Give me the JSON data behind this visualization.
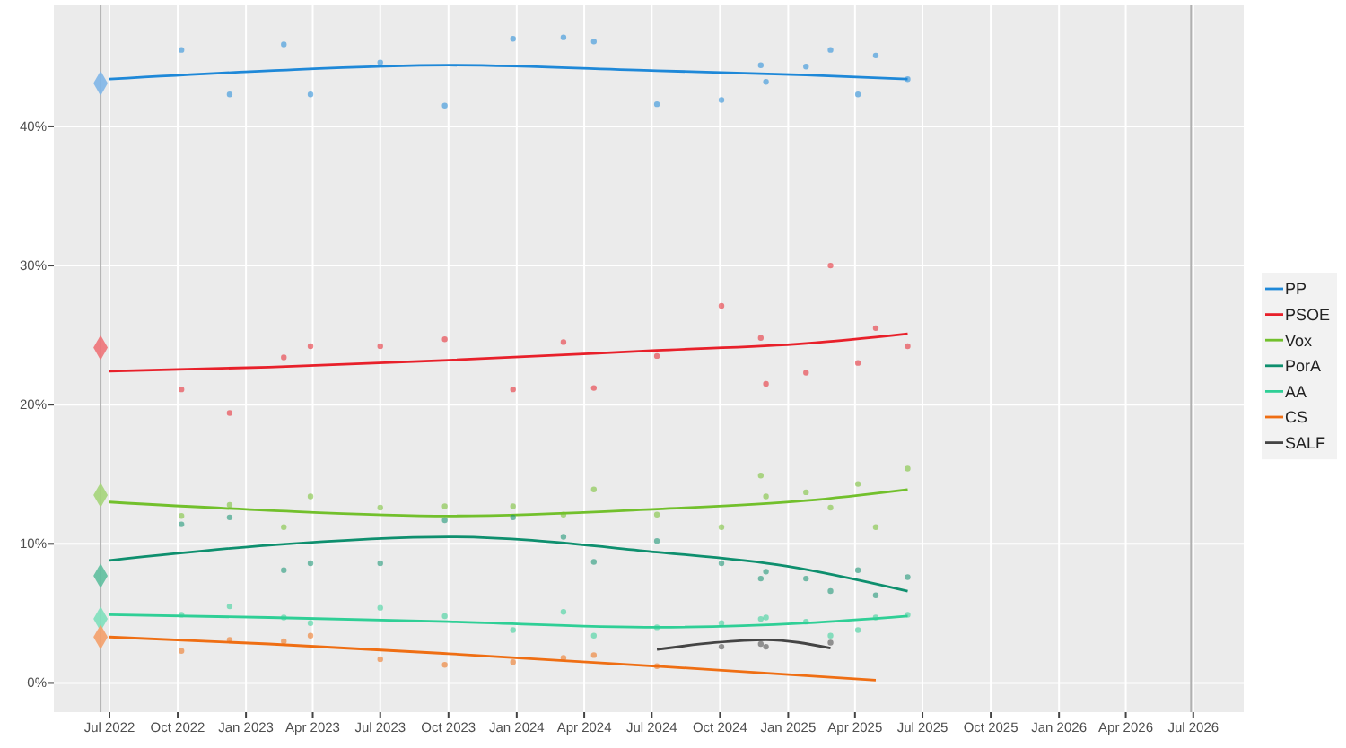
{
  "chart_data": {
    "type": "line",
    "xlim": [
      "2022-04-17",
      "2026-09-07"
    ],
    "ylim": [
      -2.1,
      48.7
    ],
    "xticks": [
      {
        "value": "2022-07-01",
        "label": "Jul 2022"
      },
      {
        "value": "2022-10-01",
        "label": "Oct 2022"
      },
      {
        "value": "2023-01-01",
        "label": "Jan 2023"
      },
      {
        "value": "2023-04-01",
        "label": "Apr 2023"
      },
      {
        "value": "2023-07-01",
        "label": "Jul 2023"
      },
      {
        "value": "2023-10-01",
        "label": "Oct 2023"
      },
      {
        "value": "2024-01-01",
        "label": "Jan 2024"
      },
      {
        "value": "2024-04-01",
        "label": "Apr 2024"
      },
      {
        "value": "2024-07-01",
        "label": "Jul 2024"
      },
      {
        "value": "2024-10-01",
        "label": "Oct 2024"
      },
      {
        "value": "2025-01-01",
        "label": "Jan 2025"
      },
      {
        "value": "2025-04-01",
        "label": "Apr 2025"
      },
      {
        "value": "2025-07-01",
        "label": "Jul 2025"
      },
      {
        "value": "2025-10-01",
        "label": "Oct 2025"
      },
      {
        "value": "2026-01-01",
        "label": "Jan 2026"
      },
      {
        "value": "2026-04-01",
        "label": "Apr 2026"
      },
      {
        "value": "2026-07-01",
        "label": "Jul 2026"
      }
    ],
    "yticks": [
      {
        "value": 0,
        "label": "0%"
      },
      {
        "value": 10,
        "label": "10%"
      },
      {
        "value": 20,
        "label": "20%"
      },
      {
        "value": 30,
        "label": "30%"
      },
      {
        "value": 40,
        "label": "40%"
      }
    ],
    "grid": true,
    "legend": "right",
    "line_style": "solid",
    "ref_lines": [
      {
        "axis": "x",
        "value": "2022-06-19",
        "color": "#b0b0b0"
      },
      {
        "axis": "x",
        "value": "2026-06-28",
        "color": "#b0b0b0"
      }
    ],
    "series": [
      {
        "name": "PP",
        "color": "#1e88d8",
        "x": [
          "2022-07-01",
          "2023-02-01",
          "2023-10-01",
          "2024-07-08",
          "2025-01-25",
          "2025-06-11"
        ],
        "values": [
          43.4,
          44.0,
          44.4,
          44.0,
          43.7,
          43.4
        ]
      },
      {
        "name": "PSOE",
        "color": "#e8202a",
        "x": [
          "2022-07-01",
          "2023-02-01",
          "2023-10-01",
          "2024-07-08",
          "2025-01-25",
          "2025-06-11"
        ],
        "values": [
          22.4,
          22.7,
          23.2,
          23.9,
          24.4,
          25.1
        ]
      },
      {
        "name": "Vox",
        "color": "#72c02c",
        "x": [
          "2022-07-01",
          "2023-02-01",
          "2023-10-01",
          "2024-07-08",
          "2025-01-25",
          "2025-06-11"
        ],
        "values": [
          13.0,
          12.4,
          12.0,
          12.5,
          13.1,
          13.9
        ]
      },
      {
        "name": "PorA",
        "color": "#0e8f6e",
        "x": [
          "2022-07-01",
          "2023-02-01",
          "2023-10-01",
          "2024-07-08",
          "2024-12-29",
          "2025-06-11"
        ],
        "values": [
          8.8,
          9.9,
          10.5,
          9.4,
          8.4,
          6.6
        ]
      },
      {
        "name": "AA",
        "color": "#2fcf96",
        "x": [
          "2022-07-01",
          "2023-02-01",
          "2023-10-01",
          "2024-07-08",
          "2025-01-25",
          "2025-06-11"
        ],
        "values": [
          4.9,
          4.7,
          4.4,
          4.0,
          4.3,
          4.8
        ]
      },
      {
        "name": "CS",
        "color": "#ef6e13",
        "x": [
          "2022-07-01",
          "2023-02-01",
          "2023-10-01",
          "2024-07-08",
          "2025-04-29"
        ],
        "values": [
          3.3,
          2.8,
          2.1,
          1.2,
          0.2
        ]
      },
      {
        "name": "SALF",
        "color": "#444444",
        "x": [
          "2024-07-08",
          "2024-09-24",
          "2024-12-02",
          "2025-02-27"
        ],
        "values": [
          2.4,
          2.9,
          3.1,
          2.5
        ]
      },
      {
        "type": "scatter",
        "marker": "diamond",
        "x": [
          "2022-06-19",
          "2022-06-19",
          "2022-06-19",
          "2022-06-19",
          "2022-06-19",
          "2022-06-19"
        ],
        "values": [
          43.1,
          24.1,
          13.5,
          7.7,
          4.6,
          3.3
        ],
        "colors": [
          "#7fb6e8",
          "#ee7378",
          "#a5d57a",
          "#5fbf9f",
          "#7ee0bd",
          "#f4a06a"
        ]
      },
      {
        "type": "scatter",
        "marker": "circle",
        "color": "#1e88d8",
        "x": [
          "2022-10-06",
          "2022-12-10",
          "2023-02-21",
          "2023-03-29",
          "2023-07-01",
          "2023-09-26",
          "2023-12-27",
          "2024-03-04",
          "2024-04-14",
          "2024-07-08",
          "2024-10-03",
          "2024-11-25",
          "2024-12-02",
          "2025-01-25",
          "2025-02-27",
          "2025-04-05",
          "2025-04-29",
          "2025-06-11"
        ],
        "values": [
          45.5,
          42.3,
          45.9,
          42.3,
          44.6,
          41.5,
          46.3,
          46.4,
          46.1,
          41.6,
          41.9,
          44.4,
          43.2,
          44.3,
          45.5,
          42.3,
          45.1,
          43.4
        ]
      },
      {
        "type": "scatter",
        "marker": "circle",
        "color": "#e8202a",
        "x": [
          "2022-10-06",
          "2022-12-10",
          "2023-02-21",
          "2023-03-29",
          "2023-07-01",
          "2023-09-26",
          "2023-12-27",
          "2024-03-04",
          "2024-04-14",
          "2024-07-08",
          "2024-10-03",
          "2024-11-25",
          "2024-12-02",
          "2025-01-25",
          "2025-02-27",
          "2025-04-05",
          "2025-04-29",
          "2025-06-11"
        ],
        "values": [
          21.1,
          19.4,
          23.4,
          24.2,
          24.2,
          24.7,
          21.1,
          24.5,
          21.2,
          23.5,
          27.1,
          24.8,
          21.5,
          22.3,
          30.0,
          23.0,
          25.5,
          24.2
        ]
      },
      {
        "type": "scatter",
        "marker": "circle",
        "color": "#72c02c",
        "x": [
          "2022-10-06",
          "2022-12-10",
          "2023-02-21",
          "2023-03-29",
          "2023-07-01",
          "2023-09-26",
          "2023-12-27",
          "2024-03-04",
          "2024-04-14",
          "2024-07-08",
          "2024-10-03",
          "2024-11-25",
          "2024-12-02",
          "2025-01-25",
          "2025-02-27",
          "2025-04-05",
          "2025-04-29",
          "2025-06-11"
        ],
        "values": [
          12.0,
          12.8,
          11.2,
          13.4,
          12.6,
          12.7,
          12.7,
          12.1,
          13.9,
          12.1,
          11.2,
          14.9,
          13.4,
          13.7,
          12.6,
          14.3,
          11.2,
          15.4
        ]
      },
      {
        "type": "scatter",
        "marker": "circle",
        "color": "#0e8f6e",
        "x": [
          "2022-10-06",
          "2022-12-10",
          "2023-02-21",
          "2023-03-29",
          "2023-07-01",
          "2023-09-26",
          "2023-12-27",
          "2024-03-04",
          "2024-04-14",
          "2024-07-08",
          "2024-10-03",
          "2024-11-25",
          "2024-12-02",
          "2025-01-25",
          "2025-02-27",
          "2025-04-05",
          "2025-04-29",
          "2025-06-11"
        ],
        "values": [
          11.4,
          11.9,
          8.1,
          8.6,
          8.6,
          11.7,
          11.9,
          10.5,
          8.7,
          10.2,
          8.6,
          7.5,
          8.0,
          7.5,
          6.6,
          8.1,
          6.3,
          7.6
        ]
      },
      {
        "type": "scatter",
        "marker": "circle",
        "color": "#2fcf96",
        "x": [
          "2022-10-06",
          "2022-12-10",
          "2023-02-21",
          "2023-03-29",
          "2023-07-01",
          "2023-09-26",
          "2023-12-27",
          "2024-03-04",
          "2024-04-14",
          "2024-07-08",
          "2024-10-03",
          "2024-11-25",
          "2024-12-02",
          "2025-01-25",
          "2025-02-27",
          "2025-04-05",
          "2025-04-29",
          "2025-06-11"
        ],
        "values": [
          4.9,
          5.5,
          4.7,
          4.3,
          5.4,
          4.8,
          3.8,
          5.1,
          3.4,
          4.0,
          4.3,
          4.6,
          4.7,
          4.4,
          3.4,
          3.8,
          4.7,
          4.9
        ]
      },
      {
        "type": "scatter",
        "marker": "circle",
        "color": "#ef6e13",
        "x": [
          "2022-10-06",
          "2022-12-10",
          "2023-02-21",
          "2023-03-29",
          "2023-07-01",
          "2023-09-26",
          "2023-12-27",
          "2024-03-04",
          "2024-04-14",
          "2024-07-08"
        ],
        "values": [
          2.3,
          3.1,
          3.0,
          3.4,
          1.7,
          1.3,
          1.5,
          1.8,
          2.0,
          1.2
        ]
      },
      {
        "type": "scatter",
        "marker": "circle",
        "color": "#444444",
        "x": [
          "2024-10-03",
          "2024-11-25",
          "2024-12-02",
          "2025-02-27"
        ],
        "values": [
          2.6,
          2.8,
          2.6,
          2.9
        ]
      }
    ]
  }
}
